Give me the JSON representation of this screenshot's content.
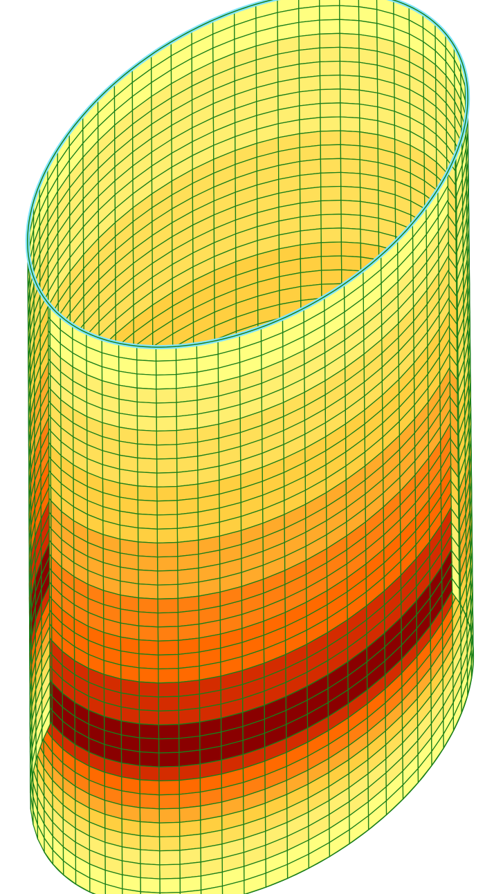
{
  "model": {
    "shape": "open-cylindrical-shell",
    "mesh": {
      "circumferential_divisions": 64,
      "axial_divisions": 40
    },
    "mesh_line_color": "#1a7f1a",
    "rim_highlight_color": "#80e5ff",
    "contour_bands": {
      "count": 9,
      "colors": [
        "#ffff80",
        "#ffef70",
        "#ffdf58",
        "#ffcf40",
        "#ffaa2a",
        "#ff7f10",
        "#ff6a00",
        "#d42c00",
        "#8a0000"
      ]
    },
    "band_profile": [
      0,
      0,
      0,
      1,
      1,
      1,
      2,
      2,
      2,
      2,
      3,
      3,
      3,
      3,
      4,
      4,
      4,
      4,
      5,
      5,
      5,
      6,
      6,
      6,
      7,
      7,
      7,
      8,
      8,
      8,
      7,
      6,
      5,
      4,
      3,
      2,
      1,
      1,
      0,
      0
    ]
  }
}
